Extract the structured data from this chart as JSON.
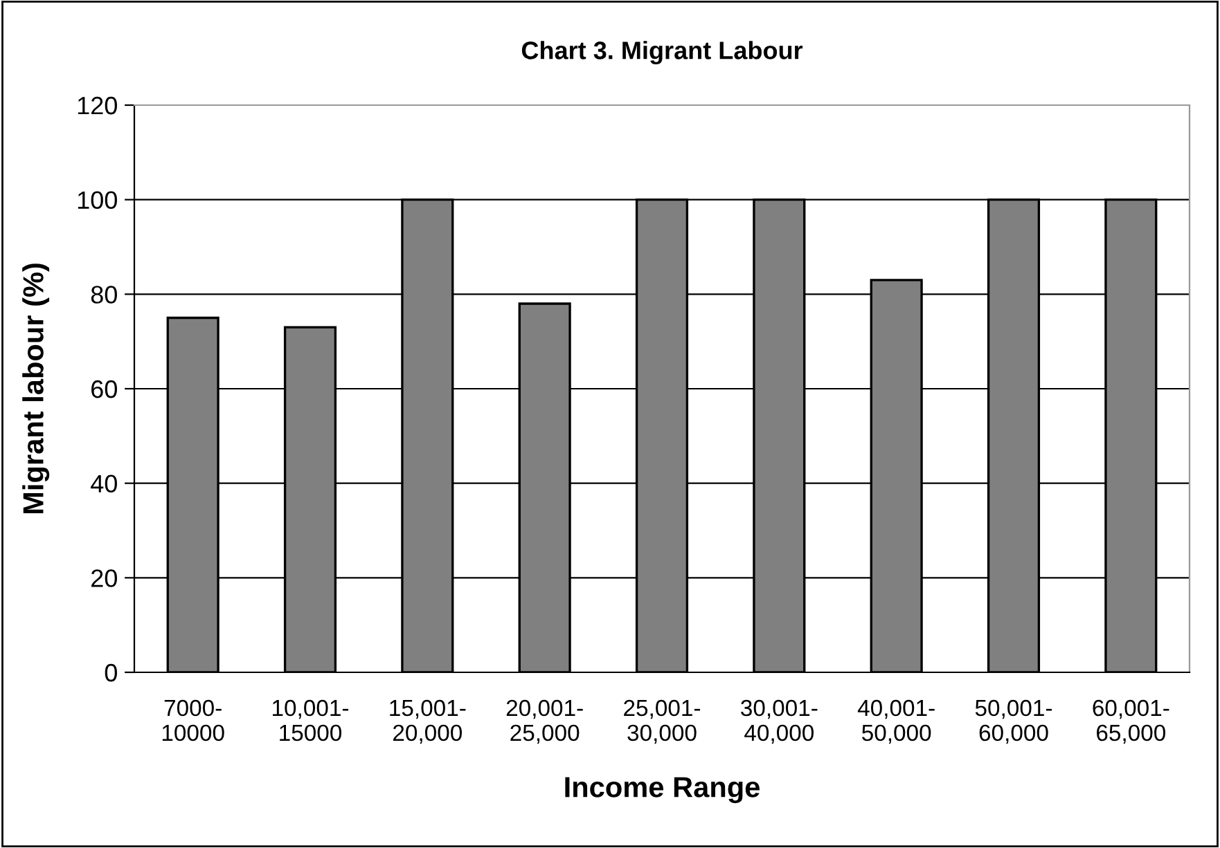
{
  "chart_data": {
    "type": "bar",
    "title": "Chart 3. Migrant Labour",
    "xlabel": "Income Range",
    "ylabel": "Migrant labour (%)",
    "categories": [
      "7000-\n10000",
      "10,001-\n15000",
      "15,001-\n20,000",
      "20,001-\n25,000",
      "25,001-\n30,000",
      "30,001-\n40,000",
      "40,001-\n50,000",
      "50,001-\n60,000",
      "60,001-\n65,000"
    ],
    "values": [
      75,
      73,
      100,
      78,
      100,
      100,
      83,
      100,
      100
    ],
    "color": "#808080",
    "ylim": [
      0,
      120
    ],
    "yticks": [
      0,
      20,
      40,
      60,
      80,
      100,
      120
    ],
    "grid": "y",
    "legend": false
  }
}
